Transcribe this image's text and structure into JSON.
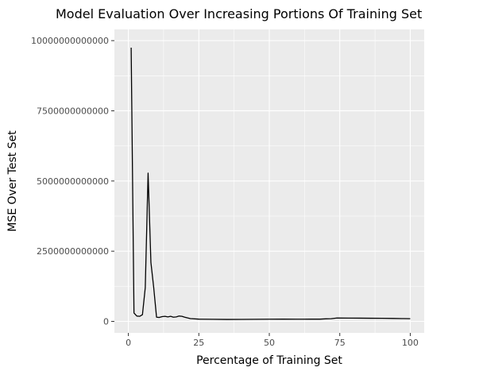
{
  "chart_data": {
    "type": "line",
    "title": "Model Evaluation Over Increasing Portions Of Training Set",
    "xlabel": "Percentage of Training Set",
    "ylabel": "MSE Over Test Set",
    "xlim": [
      -4.95,
      104.95
    ],
    "ylim": [
      -410000000000,
      10400000000000
    ],
    "x_ticks": [
      0,
      25,
      50,
      75,
      100
    ],
    "x_tick_labels": [
      "0",
      "25",
      "50",
      "75",
      "100"
    ],
    "y_ticks": [
      0,
      2500000000000,
      5000000000000,
      7500000000000,
      10000000000000
    ],
    "y_tick_labels": [
      "0",
      "2500000000000",
      "5000000000000",
      "7500000000000",
      "10000000000000"
    ],
    "grid": true,
    "series": [
      {
        "color": "#000000",
        "x": [
          1,
          2,
          3,
          4,
          5,
          6,
          7,
          8,
          9,
          10,
          11,
          12,
          13,
          14,
          15,
          16,
          17,
          18,
          19,
          20,
          22,
          25,
          30,
          35,
          40,
          45,
          50,
          55,
          60,
          65,
          68,
          70,
          72,
          74,
          78,
          82,
          86,
          90,
          94,
          97,
          100
        ],
        "y": [
          9750000000000,
          300000000000,
          190000000000,
          180000000000,
          240000000000,
          1200000000000,
          5280000000000,
          2100000000000,
          1200000000000,
          150000000000,
          140000000000,
          170000000000,
          180000000000,
          160000000000,
          180000000000,
          150000000000,
          160000000000,
          190000000000,
          180000000000,
          150000000000,
          100000000000,
          80000000000,
          75000000000,
          70000000000,
          72000000000,
          74000000000,
          78000000000,
          80000000000,
          78000000000,
          80000000000,
          80000000000,
          90000000000,
          95000000000,
          120000000000,
          118000000000,
          115000000000,
          112000000000,
          110000000000,
          105000000000,
          100000000000,
          95000000000
        ]
      }
    ]
  }
}
